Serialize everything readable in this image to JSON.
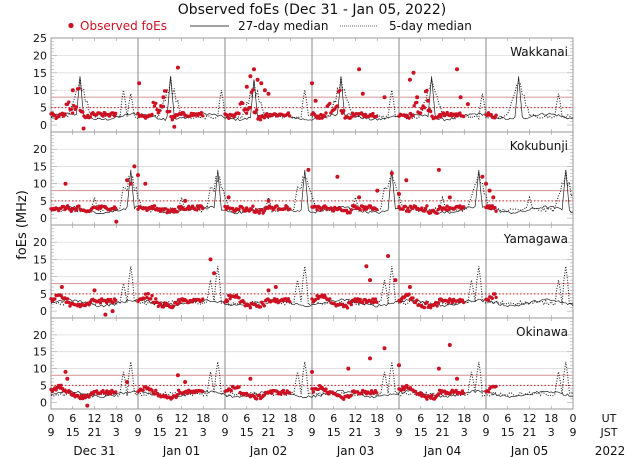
{
  "chart_data": {
    "type": "scatter",
    "title": "Observed foEs (Dec 31 - Jan 05, 2022)",
    "ylabel": "foEs (MHz)",
    "xlabel": "",
    "legend": {
      "placement": "top",
      "entries": [
        {
          "name": "Observed foEs",
          "style": "red-dot",
          "color": "#cc1122"
        },
        {
          "name": "27-day median",
          "style": "solid-line",
          "color": "#333333"
        },
        {
          "name": "5-day median",
          "style": "dotted-line",
          "color": "#333333"
        }
      ]
    },
    "ylim": [
      -2,
      25
    ],
    "yticks": [
      0,
      5,
      10,
      15,
      20,
      25
    ],
    "grid": true,
    "x_hours_total": 144,
    "xticks_ut": [
      "0",
      "6",
      "12",
      "18",
      "0",
      "6",
      "12",
      "18",
      "0",
      "6",
      "12",
      "18",
      "0",
      "6",
      "12",
      "18",
      "0",
      "6",
      "12",
      "18",
      "0",
      "6",
      "12",
      "18",
      "0"
    ],
    "xticks_jst": [
      "9",
      "15",
      "21",
      "3",
      "9",
      "15",
      "21",
      "3",
      "9",
      "15",
      "21",
      "3",
      "9",
      "15",
      "21",
      "3",
      "9",
      "15",
      "21",
      "3",
      "9",
      "15",
      "21",
      "3",
      "9"
    ],
    "x_row_labels": [
      "UT",
      "JST"
    ],
    "day_labels": [
      "Dec 31",
      "Jan 01",
      "Jan 02",
      "Jan 03",
      "Jan 04",
      "Jan 05"
    ],
    "year_label": "2022",
    "ref_lines": {
      "solid": 8,
      "dotted": 5
    },
    "colors": {
      "observed": "#cc1122",
      "median": "#222222",
      "ref_solid": "#d9a0a0",
      "ref_dotted": "#cc2222",
      "grid": "#dddddd",
      "day_divider": "#888888"
    },
    "panels": [
      {
        "station": "Wakkanai",
        "observed_daily_profile": [
          [
            0,
            3
          ],
          [
            1,
            2.5
          ],
          [
            2,
            2.5
          ],
          [
            3,
            3
          ],
          [
            4,
            6
          ],
          [
            5,
            4
          ],
          [
            6,
            5
          ],
          [
            7,
            10
          ],
          [
            8,
            4
          ],
          [
            9,
            2
          ],
          [
            10,
            2.5
          ],
          [
            11,
            3
          ]
        ],
        "observed_peaks": [
          [
            6,
            10
          ],
          [
            9,
            -1
          ],
          [
            24.3,
            12
          ],
          [
            31,
            8
          ],
          [
            35,
            16.5
          ],
          [
            34,
            -0.5
          ],
          [
            55,
            14
          ],
          [
            56,
            16
          ],
          [
            57,
            13
          ],
          [
            58,
            12
          ],
          [
            59,
            10
          ],
          [
            60,
            9
          ],
          [
            54,
            11
          ],
          [
            72,
            12
          ],
          [
            73,
            7
          ],
          [
            85,
            16
          ],
          [
            86,
            9
          ],
          [
            92,
            8
          ],
          [
            99,
            13
          ],
          [
            100,
            15
          ],
          [
            101,
            8
          ],
          [
            104,
            7
          ],
          [
            112,
            16
          ],
          [
            113,
            8
          ],
          [
            115,
            6
          ]
        ],
        "median27_peaks": [
          [
            8,
            14
          ],
          [
            33,
            14
          ],
          [
            56,
            13
          ],
          [
            80,
            14
          ],
          [
            105,
            14
          ],
          [
            129,
            14
          ]
        ],
        "median5_spikes": [
          [
            20,
            10
          ],
          [
            22,
            9
          ],
          [
            47,
            10
          ],
          [
            70,
            10
          ],
          [
            94,
            10
          ],
          [
            119,
            9
          ],
          [
            140,
            9
          ]
        ]
      },
      {
        "station": "Kokubunji",
        "observed_daily_profile": [
          [
            0,
            3
          ],
          [
            1,
            3
          ],
          [
            2,
            2.5
          ],
          [
            3,
            3
          ],
          [
            4,
            3
          ],
          [
            5,
            2.5
          ],
          [
            6,
            2.5
          ],
          [
            7,
            3
          ],
          [
            8,
            2
          ],
          [
            9,
            2
          ],
          [
            10,
            2
          ],
          [
            11,
            3
          ]
        ],
        "observed_peaks": [
          [
            4,
            10
          ],
          [
            18,
            -1
          ],
          [
            21,
            11
          ],
          [
            22,
            10
          ],
          [
            23,
            15
          ],
          [
            24,
            12.5
          ],
          [
            26,
            10
          ],
          [
            37,
            5
          ],
          [
            49,
            6
          ],
          [
            60,
            5
          ],
          [
            71,
            14
          ],
          [
            79,
            12
          ],
          [
            85,
            6
          ],
          [
            90,
            8
          ],
          [
            94,
            13
          ],
          [
            96,
            7
          ],
          [
            98,
            11
          ],
          [
            107,
            14
          ],
          [
            110,
            6
          ],
          [
            119,
            12
          ],
          [
            120,
            10
          ],
          [
            121,
            8
          ],
          [
            122,
            6
          ]
        ],
        "median27_peaks": [
          [
            22,
            14
          ],
          [
            46,
            14
          ],
          [
            70,
            14
          ],
          [
            94,
            14
          ],
          [
            118,
            14
          ],
          [
            142,
            14
          ]
        ],
        "median5_spikes": [
          [
            12,
            6
          ],
          [
            20,
            9
          ],
          [
            36,
            6
          ],
          [
            44,
            9
          ],
          [
            60,
            6
          ],
          [
            68,
            9
          ],
          [
            84,
            6
          ],
          [
            92,
            9
          ],
          [
            108,
            6
          ],
          [
            132,
            6
          ]
        ]
      },
      {
        "station": "Yamagawa",
        "observed_daily_profile": [
          [
            0,
            3
          ],
          [
            1,
            4
          ],
          [
            2,
            4.5
          ],
          [
            3,
            4
          ],
          [
            4,
            3
          ],
          [
            5,
            2
          ],
          [
            6,
            1.5
          ],
          [
            7,
            2
          ],
          [
            8,
            1.5
          ],
          [
            9,
            1.5
          ],
          [
            10,
            2
          ],
          [
            11,
            3
          ]
        ],
        "observed_peaks": [
          [
            3,
            7
          ],
          [
            12,
            6
          ],
          [
            15,
            -1
          ],
          [
            17,
            0
          ],
          [
            44,
            15
          ],
          [
            45,
            11
          ],
          [
            60,
            6
          ],
          [
            62,
            7
          ],
          [
            87,
            13
          ],
          [
            88,
            9
          ],
          [
            93,
            16
          ],
          [
            95,
            9
          ],
          [
            99,
            7
          ]
        ],
        "median27_peaks": [],
        "median5_spikes": [
          [
            20,
            8
          ],
          [
            22,
            13
          ],
          [
            44,
            9
          ],
          [
            46,
            13
          ],
          [
            68,
            9
          ],
          [
            70,
            13
          ],
          [
            92,
            9
          ],
          [
            94,
            13
          ],
          [
            116,
            9
          ],
          [
            118,
            13
          ],
          [
            140,
            9
          ],
          [
            142,
            13
          ]
        ]
      },
      {
        "station": "Okinawa",
        "observed_daily_profile": [
          [
            0,
            3.5
          ],
          [
            1,
            4
          ],
          [
            2,
            4.5
          ],
          [
            3,
            4
          ],
          [
            4,
            3
          ],
          [
            5,
            2.5
          ],
          [
            6,
            2
          ],
          [
            7,
            1.5
          ],
          [
            8,
            1.5
          ],
          [
            9,
            1.5
          ],
          [
            10,
            2
          ],
          [
            11,
            3
          ]
        ],
        "observed_peaks": [
          [
            4,
            9
          ],
          [
            4.5,
            7
          ],
          [
            10,
            -1
          ],
          [
            21,
            6
          ],
          [
            35,
            8
          ],
          [
            37,
            6
          ],
          [
            55,
            7
          ],
          [
            72,
            9
          ],
          [
            82,
            10
          ],
          [
            88,
            13
          ],
          [
            92,
            16
          ],
          [
            96,
            11
          ],
          [
            107,
            10
          ],
          [
            110,
            17
          ],
          [
            112,
            7
          ]
        ],
        "median27_peaks": [],
        "median5_spikes": [
          [
            20,
            9
          ],
          [
            22,
            12
          ],
          [
            44,
            9
          ],
          [
            46,
            12
          ],
          [
            68,
            9
          ],
          [
            70,
            12
          ],
          [
            92,
            9
          ],
          [
            94,
            12
          ],
          [
            116,
            9
          ],
          [
            118,
            12
          ],
          [
            140,
            9
          ],
          [
            142,
            12
          ]
        ]
      }
    ]
  }
}
